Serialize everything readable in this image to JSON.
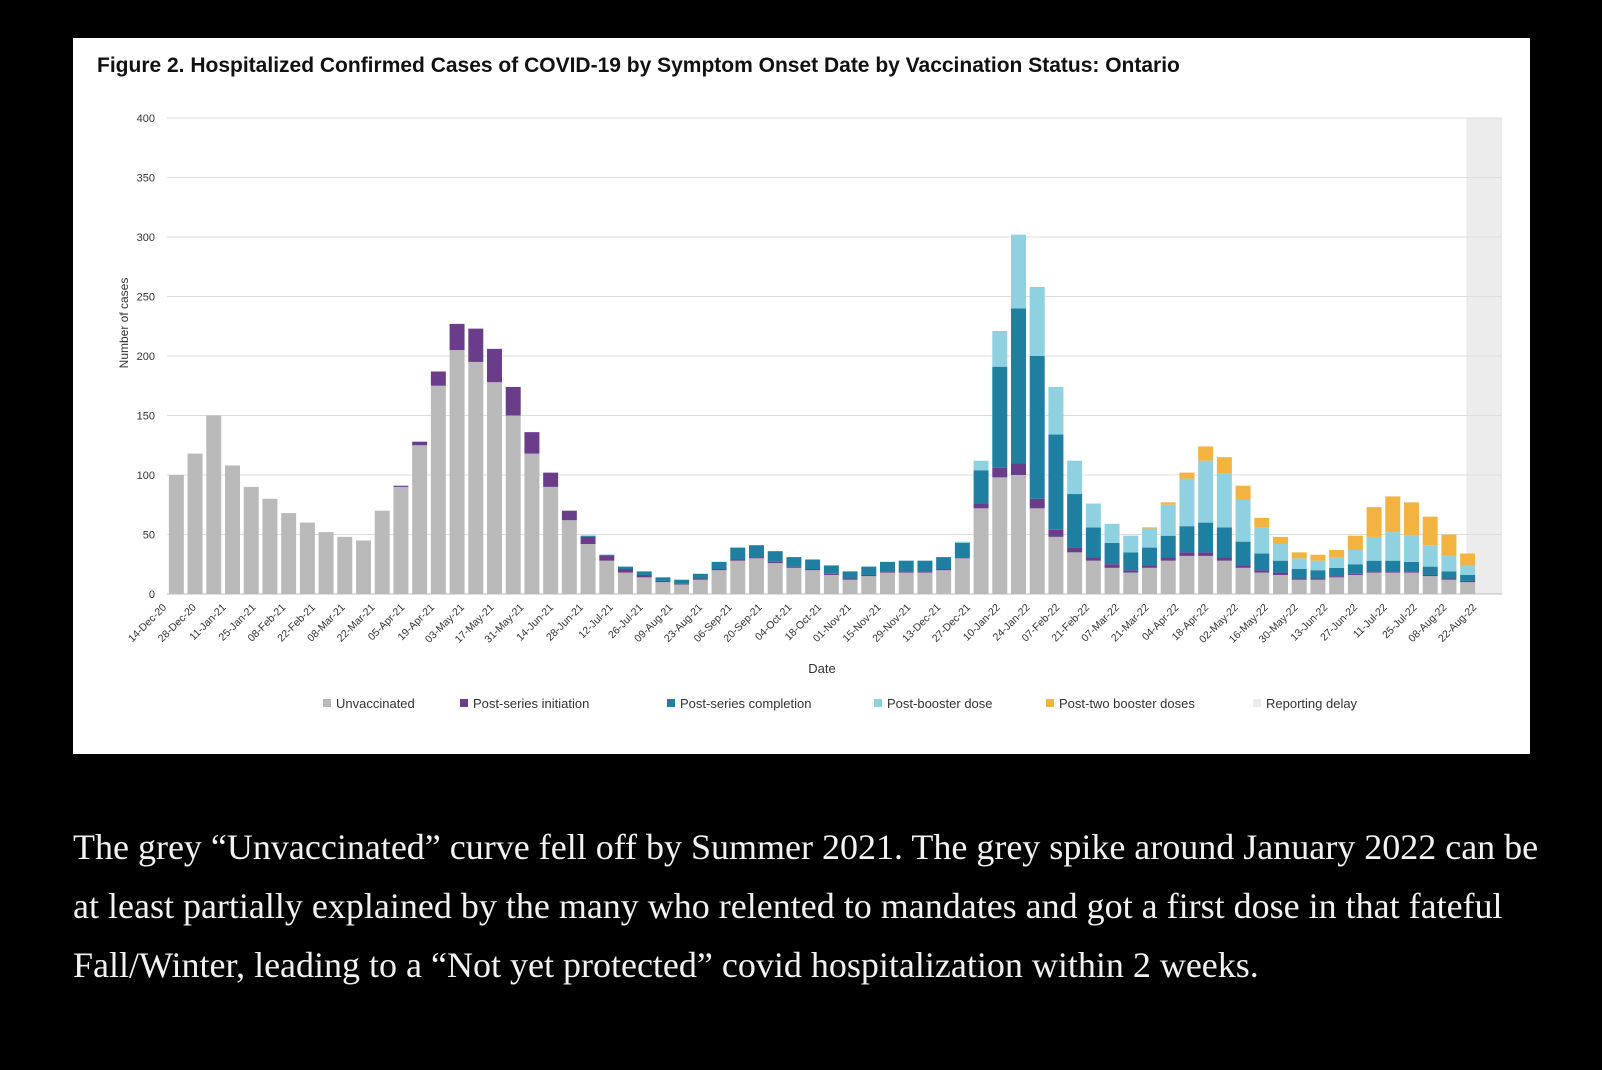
{
  "figure": {
    "title": "Figure 2. Hospitalized Confirmed Cases of COVID-19 by Symptom Onset Date by Vaccination Status: Ontario"
  },
  "caption": {
    "text": "The grey “Unvaccinated” curve fell off by Summer 2021. The grey spike around January 2022 can be at least partially explained by the many who relented to mandates and got a first dose in that fateful Fall/Winter, leading to a “Not yet protected” covid hospitalization within 2 weeks."
  },
  "chart_data": {
    "type": "bar",
    "stacked": true,
    "title": "Figure 2. Hospitalized Confirmed Cases of COVID-19 by Symptom Onset Date by Vaccination Status: Ontario",
    "xlabel": "Date",
    "ylabel": "Number of cases",
    "ylim": [
      0,
      400
    ],
    "yticks": [
      0,
      50,
      100,
      150,
      200,
      250,
      300,
      350,
      400
    ],
    "grid": true,
    "legend_position": "bottom",
    "x_start": "14-Dec-20",
    "x_end": "22-Aug-22",
    "reporting_delay_from": "17-Aug-22",
    "date_ticks": [
      "14-Dec-20",
      "28-Dec-20",
      "11-Jan-21",
      "25-Jan-21",
      "08-Feb-21",
      "22-Feb-21",
      "08-Mar-21",
      "22-Mar-21",
      "05-Apr-21",
      "19-Apr-21",
      "03-May-21",
      "17-May-21",
      "31-May-21",
      "14-Jun-21",
      "28-Jun-21",
      "12-Jul-21",
      "26-Jul-21",
      "09-Aug-21",
      "23-Aug-21",
      "06-Sep-21",
      "20-Sep-21",
      "04-Oct-21",
      "18-Oct-21",
      "01-Nov-21",
      "15-Nov-21",
      "29-Nov-21",
      "13-Dec-21",
      "27-Dec-21",
      "10-Jan-22",
      "24-Jan-22",
      "07-Feb-22",
      "21-Feb-22",
      "07-Mar-22",
      "21-Mar-22",
      "04-Apr-22",
      "18-Apr-22",
      "02-May-22",
      "16-May-22",
      "30-May-22",
      "13-Jun-22",
      "27-Jun-22",
      "11-Jul-22",
      "25-Jul-22",
      "08-Aug-22",
      "22-Aug-22"
    ],
    "series": [
      {
        "name": "Unvaccinated",
        "color": "#b9b9b9",
        "values": [
          100,
          118,
          150,
          108,
          90,
          80,
          68,
          60,
          52,
          48,
          45,
          70,
          90,
          125,
          175,
          205,
          195,
          178,
          150,
          118,
          90,
          62,
          42,
          28,
          18,
          14,
          10,
          8,
          12,
          20,
          28,
          30,
          26,
          22,
          20,
          16,
          12,
          15,
          18,
          18,
          18,
          20,
          30,
          72,
          98,
          100,
          72,
          48,
          35,
          28,
          22,
          18,
          22,
          28,
          32,
          32,
          28,
          22,
          18,
          16,
          12,
          12,
          14,
          16,
          18,
          18,
          18,
          15,
          12,
          10
        ]
      },
      {
        "name": "Post-series initiation",
        "color": "#6a3d8a",
        "values": [
          0,
          0,
          0,
          0,
          0,
          0,
          0,
          0,
          0,
          0,
          0,
          0,
          1,
          3,
          12,
          22,
          28,
          28,
          24,
          18,
          12,
          8,
          6,
          4,
          3,
          2,
          1,
          1,
          1,
          1,
          1,
          1,
          1,
          1,
          1,
          1,
          1,
          1,
          1,
          1,
          1,
          1,
          1,
          4,
          8,
          10,
          8,
          6,
          4,
          3,
          3,
          2,
          2,
          3,
          3,
          3,
          3,
          2,
          2,
          2,
          1,
          1,
          1,
          1,
          1,
          1,
          1,
          1,
          1,
          1
        ]
      },
      {
        "name": "Post-series completion",
        "color": "#1f7fa0",
        "values": [
          0,
          0,
          0,
          0,
          0,
          0,
          0,
          0,
          0,
          0,
          0,
          0,
          0,
          0,
          0,
          0,
          0,
          0,
          0,
          0,
          0,
          0,
          1,
          1,
          2,
          3,
          3,
          3,
          4,
          6,
          10,
          10,
          9,
          8,
          8,
          7,
          6,
          7,
          8,
          9,
          9,
          10,
          12,
          28,
          85,
          130,
          120,
          80,
          45,
          25,
          18,
          15,
          15,
          18,
          22,
          25,
          25,
          20,
          14,
          10,
          8,
          7,
          7,
          8,
          9,
          9,
          8,
          7,
          6,
          5
        ]
      },
      {
        "name": "Post-booster dose",
        "color": "#8fd1e0",
        "values": [
          0,
          0,
          0,
          0,
          0,
          0,
          0,
          0,
          0,
          0,
          0,
          0,
          0,
          0,
          0,
          0,
          0,
          0,
          0,
          0,
          0,
          0,
          0,
          0,
          0,
          0,
          0,
          0,
          0,
          0,
          0,
          0,
          0,
          0,
          0,
          0,
          0,
          0,
          0,
          0,
          0,
          0,
          1,
          8,
          30,
          62,
          58,
          40,
          28,
          20,
          16,
          14,
          16,
          26,
          40,
          52,
          45,
          35,
          22,
          14,
          9,
          8,
          9,
          12,
          20,
          24,
          22,
          18,
          13,
          8
        ]
      },
      {
        "name": "Post-two booster doses",
        "color": "#f2b340",
        "values": [
          0,
          0,
          0,
          0,
          0,
          0,
          0,
          0,
          0,
          0,
          0,
          0,
          0,
          0,
          0,
          0,
          0,
          0,
          0,
          0,
          0,
          0,
          0,
          0,
          0,
          0,
          0,
          0,
          0,
          0,
          0,
          0,
          0,
          0,
          0,
          0,
          0,
          0,
          0,
          0,
          0,
          0,
          0,
          0,
          0,
          0,
          0,
          0,
          0,
          0,
          0,
          0,
          1,
          2,
          5,
          12,
          14,
          12,
          8,
          6,
          5,
          5,
          6,
          12,
          25,
          30,
          28,
          24,
          18,
          10
        ]
      },
      {
        "name": "Reporting delay",
        "color": "#ececec",
        "values": []
      }
    ]
  }
}
